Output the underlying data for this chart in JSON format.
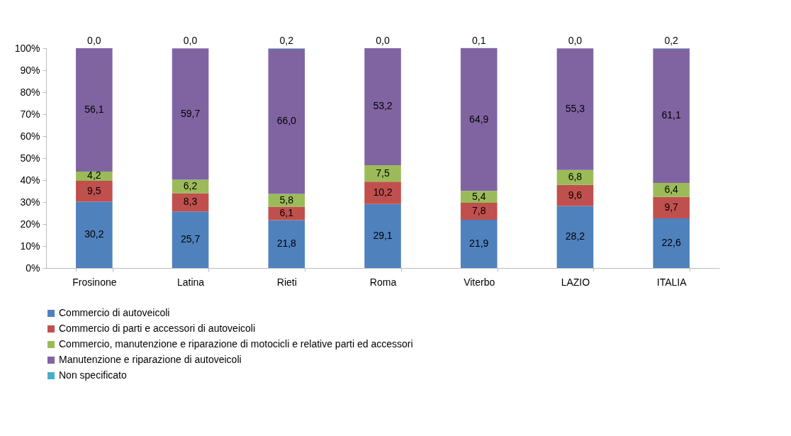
{
  "chart_data": {
    "type": "bar",
    "stacked": true,
    "categories": [
      "Frosinone",
      "Latina",
      "Rieti",
      "Roma",
      "Viterbo",
      "LAZIO",
      "ITALIA"
    ],
    "series": [
      {
        "name": "Commercio di autoveicoli",
        "color": "#4f81bd",
        "values": [
          30.2,
          25.7,
          21.8,
          29.1,
          21.9,
          28.2,
          22.6
        ],
        "value_labels": [
          "30,2",
          "25,7",
          "21,8",
          "29,1",
          "21,9",
          "28,2",
          "22,6"
        ]
      },
      {
        "name": "Commercio di parti e accessori di autoveicoli",
        "color": "#c0504d",
        "values": [
          9.5,
          8.3,
          6.1,
          10.2,
          7.8,
          9.6,
          9.7
        ],
        "value_labels": [
          "9,5",
          "8,3",
          "6,1",
          "10,2",
          "7,8",
          "9,6",
          "9,7"
        ]
      },
      {
        "name": "Commercio, manutenzione e riparazione di motocicli e relative parti ed accessori",
        "color": "#9bbb59",
        "values": [
          4.2,
          6.2,
          5.8,
          7.5,
          5.4,
          6.8,
          6.4
        ],
        "value_labels": [
          "4,2",
          "6,2",
          "5,8",
          "7,5",
          "5,4",
          "6,8",
          "6,4"
        ]
      },
      {
        "name": "Manutenzione e riparazione di autoveicoli",
        "color": "#8064a2",
        "values": [
          56.1,
          59.7,
          66.0,
          53.2,
          64.9,
          55.3,
          61.1
        ],
        "value_labels": [
          "56,1",
          "59,7",
          "66,0",
          "53,2",
          "64,9",
          "55,3",
          "61,1"
        ]
      },
      {
        "name": "Non specificato",
        "color": "#4bacc6",
        "values": [
          0.0,
          0.0,
          0.2,
          0.0,
          0.1,
          0.0,
          0.2
        ],
        "value_labels": [
          "0,0",
          "0,0",
          "0,2",
          "0,0",
          "0,1",
          "0,0",
          "0,2"
        ]
      }
    ],
    "ylim": [
      0,
      100
    ],
    "yticks": [
      {
        "value": 0,
        "label": "0%"
      },
      {
        "value": 10,
        "label": "10%"
      },
      {
        "value": 20,
        "label": "20%"
      },
      {
        "value": 30,
        "label": "30%"
      },
      {
        "value": 40,
        "label": "40%"
      },
      {
        "value": 50,
        "label": "50%"
      },
      {
        "value": 60,
        "label": "60%"
      },
      {
        "value": 70,
        "label": "70%"
      },
      {
        "value": 80,
        "label": "80%"
      },
      {
        "value": 90,
        "label": "90%"
      },
      {
        "value": 100,
        "label": "100%"
      }
    ],
    "grid": false,
    "legend": "bottom"
  }
}
